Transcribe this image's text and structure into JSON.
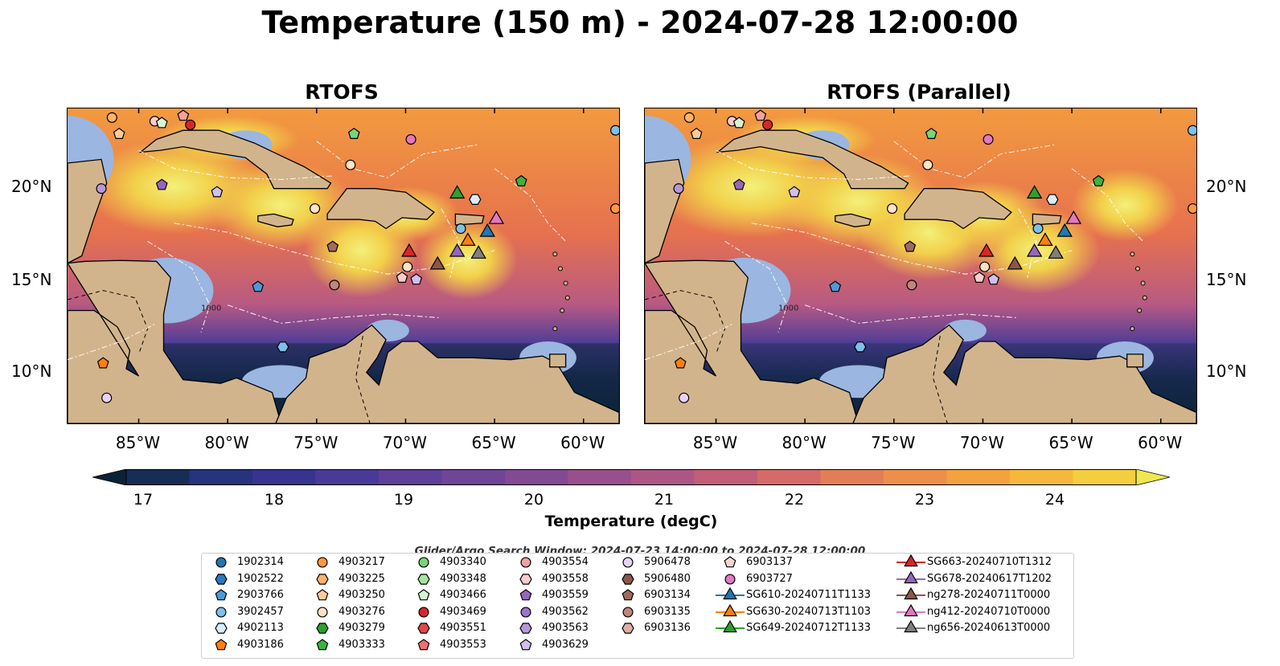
{
  "title": "Temperature (150 m) - 2024-07-28 12:00:00",
  "panels": [
    {
      "title": "RTOFS"
    },
    {
      "title": "RTOFS (Parallel)"
    }
  ],
  "axes": {
    "lat_ticks": [
      "20°N",
      "15°N",
      "10°N"
    ],
    "lon_ticks": [
      "85°W",
      "80°W",
      "75°W",
      "70°W",
      "65°W",
      "60°W"
    ],
    "contour_label": "1000"
  },
  "colorbar": {
    "label": "Temperature (degC)",
    "ticks": [
      "17",
      "18",
      "19",
      "20",
      "21",
      "22",
      "23",
      "24"
    ],
    "colors": [
      "#0b2236",
      "#182d55",
      "#27337c",
      "#37348f",
      "#4a3a98",
      "#5e3f99",
      "#704497",
      "#834a94",
      "#98508d",
      "#ad5685",
      "#c25e78",
      "#d46b69",
      "#e27e57",
      "#ec8f4a",
      "#f3a23d",
      "#f6b83a",
      "#f4ce3e",
      "#eee74f"
    ]
  },
  "search_window": "Glider/Argo Search Window: 2024-07-23 14:00:00 to 2024-07-28 12:00:00",
  "legend": {
    "columns": [
      [
        {
          "label": "1902314",
          "marker": "circle",
          "color": "#1f77b4"
        },
        {
          "label": "1902522",
          "marker": "hexagon",
          "color": "#2a78c0"
        },
        {
          "label": "2903766",
          "marker": "pentagon",
          "color": "#4c9ad8"
        },
        {
          "label": "3902457",
          "marker": "circle",
          "color": "#7ec0ea"
        },
        {
          "label": "4902113",
          "marker": "hexagon",
          "color": "#d9ecfb"
        },
        {
          "label": "4903186",
          "marker": "pentagon",
          "color": "#ff7f0e"
        }
      ],
      [
        {
          "label": "4903217",
          "marker": "circle",
          "color": "#ff9a3c"
        },
        {
          "label": "4903225",
          "marker": "hexagon",
          "color": "#ffb26b"
        },
        {
          "label": "4903250",
          "marker": "pentagon",
          "color": "#ffcc99"
        },
        {
          "label": "4903276",
          "marker": "circle",
          "color": "#ffe3c6"
        },
        {
          "label": "4903279",
          "marker": "hexagon",
          "color": "#2ca02c"
        },
        {
          "label": "4903333",
          "marker": "pentagon",
          "color": "#3cb33c"
        }
      ],
      [
        {
          "label": "4903340",
          "marker": "circle",
          "color": "#7ad37a"
        },
        {
          "label": "4903348",
          "marker": "hexagon",
          "color": "#a8e3a0"
        },
        {
          "label": "4903466",
          "marker": "pentagon",
          "color": "#d8f5d0"
        },
        {
          "label": "4903469",
          "marker": "circle",
          "color": "#d62728"
        },
        {
          "label": "4903551",
          "marker": "hexagon",
          "color": "#e04848"
        },
        {
          "label": "4903553",
          "marker": "pentagon",
          "color": "#ee7070"
        }
      ],
      [
        {
          "label": "4903554",
          "marker": "circle",
          "color": "#f4a0a0"
        },
        {
          "label": "4903558",
          "marker": "hexagon",
          "color": "#fbcccc"
        },
        {
          "label": "4903559",
          "marker": "pentagon",
          "color": "#9467bd"
        },
        {
          "label": "4903562",
          "marker": "circle",
          "color": "#9e74c6"
        },
        {
          "label": "4903563",
          "marker": "hexagon",
          "color": "#b597db"
        },
        {
          "label": "4903629",
          "marker": "pentagon",
          "color": "#d2bff0"
        }
      ],
      [
        {
          "label": "5906478",
          "marker": "circle",
          "color": "#e8d3f8"
        },
        {
          "label": "5906480",
          "marker": "hexagon",
          "color": "#8c564b"
        },
        {
          "label": "6903134",
          "marker": "pentagon",
          "color": "#a06a5d"
        },
        {
          "label": "6903135",
          "marker": "circle",
          "color": "#c0867a"
        },
        {
          "label": "6903136",
          "marker": "hexagon",
          "color": "#ddb0a4"
        }
      ],
      [
        {
          "label": "6903137",
          "marker": "pentagon",
          "color": "#f6d5cc"
        },
        {
          "label": "6903727",
          "marker": "circle",
          "color": "#e377c2"
        },
        {
          "label": "SG610-20240711T1133",
          "marker": "triangle",
          "color": "#1f77b4"
        },
        {
          "label": "SG630-20240713T1103",
          "marker": "triangle",
          "color": "#ff7f0e"
        },
        {
          "label": "SG649-20240712T1133",
          "marker": "triangle",
          "color": "#2ca02c"
        }
      ],
      [
        {
          "label": "SG663-20240710T1312",
          "marker": "triangle",
          "color": "#d62728"
        },
        {
          "label": "SG678-20240617T1202",
          "marker": "triangle",
          "color": "#9467bd"
        },
        {
          "label": "ng278-20240711T0000",
          "marker": "triangle",
          "color": "#8c564b"
        },
        {
          "label": "ng412-20240710T0000",
          "marker": "triangle",
          "color": "#e377c2"
        },
        {
          "label": "ng656-20240613T0000",
          "marker": "triangle",
          "color": "#7f7f7f"
        }
      ]
    ]
  },
  "map_markers": [
    {
      "lon": -86.5,
      "lat": 23.8,
      "marker": "circle",
      "color": "#ffb26b"
    },
    {
      "lon": -86.1,
      "lat": 22.9,
      "marker": "pentagon",
      "color": "#ffcc99"
    },
    {
      "lon": -84.1,
      "lat": 23.6,
      "marker": "circle",
      "color": "#fbcccc"
    },
    {
      "lon": -83.7,
      "lat": 23.5,
      "marker": "pentagon",
      "color": "#d8f5d0"
    },
    {
      "lon": -82.5,
      "lat": 23.9,
      "marker": "pentagon",
      "color": "#f4a0a0"
    },
    {
      "lon": -82.1,
      "lat": 23.4,
      "marker": "circle",
      "color": "#d62728"
    },
    {
      "lon": -72.9,
      "lat": 22.9,
      "marker": "pentagon",
      "color": "#7ad37a"
    },
    {
      "lon": -69.7,
      "lat": 22.6,
      "marker": "circle",
      "color": "#e377c2"
    },
    {
      "lon": -73.1,
      "lat": 21.2,
      "marker": "circle",
      "color": "#ffe3c6"
    },
    {
      "lon": -87.1,
      "lat": 19.9,
      "marker": "circle",
      "color": "#b597db"
    },
    {
      "lon": -83.7,
      "lat": 20.1,
      "marker": "pentagon",
      "color": "#9467bd"
    },
    {
      "lon": -80.6,
      "lat": 19.7,
      "marker": "pentagon",
      "color": "#d2bff0"
    },
    {
      "lon": -75.1,
      "lat": 18.8,
      "marker": "circle",
      "color": "#ffe3c6"
    },
    {
      "lon": -74.1,
      "lat": 16.7,
      "marker": "pentagon",
      "color": "#a06a5d"
    },
    {
      "lon": -74.0,
      "lat": 14.6,
      "marker": "circle",
      "color": "#c0867a"
    },
    {
      "lon": -78.3,
      "lat": 14.5,
      "marker": "pentagon",
      "color": "#4c9ad8"
    },
    {
      "lon": -69.9,
      "lat": 15.6,
      "marker": "circle",
      "color": "#ffe3c6"
    },
    {
      "lon": -70.2,
      "lat": 15.0,
      "marker": "pentagon",
      "color": "#fbcccc"
    },
    {
      "lon": -69.4,
      "lat": 14.9,
      "marker": "pentagon",
      "color": "#d2bff0"
    },
    {
      "lon": -76.9,
      "lat": 11.2,
      "marker": "hexagon",
      "color": "#7ec0ea"
    },
    {
      "lon": -87.0,
      "lat": 10.3,
      "marker": "pentagon",
      "color": "#ff7f0e"
    },
    {
      "lon": -86.8,
      "lat": 8.4,
      "marker": "circle",
      "color": "#e8d3f8"
    },
    {
      "lon": -66.1,
      "lat": 19.3,
      "marker": "hexagon",
      "color": "#d9ecfb"
    },
    {
      "lon": -66.9,
      "lat": 17.7,
      "marker": "circle",
      "color": "#7ec0ea"
    },
    {
      "lon": -63.5,
      "lat": 20.3,
      "marker": "pentagon",
      "color": "#3cb33c"
    },
    {
      "lon": -58.2,
      "lat": 23.1,
      "marker": "circle",
      "color": "#7ec0ea"
    },
    {
      "lon": -58.2,
      "lat": 18.8,
      "marker": "circle",
      "color": "#ff9a3c"
    },
    {
      "lon": -67.1,
      "lat": 19.6,
      "marker": "triangle",
      "color": "#2ca02c"
    },
    {
      "lon": -69.8,
      "lat": 16.4,
      "marker": "triangle",
      "color": "#d62728"
    },
    {
      "lon": -68.2,
      "lat": 15.7,
      "marker": "triangle",
      "color": "#8c564b"
    },
    {
      "lon": -67.1,
      "lat": 16.4,
      "marker": "triangle",
      "color": "#9467bd"
    },
    {
      "lon": -66.5,
      "lat": 17.0,
      "marker": "triangle",
      "color": "#ff7f0e"
    },
    {
      "lon": -65.9,
      "lat": 16.3,
      "marker": "triangle",
      "color": "#7f7f7f"
    },
    {
      "lon": -65.4,
      "lat": 17.5,
      "marker": "triangle",
      "color": "#1f77b4"
    },
    {
      "lon": -64.9,
      "lat": 18.2,
      "marker": "triangle",
      "color": "#e377c2"
    }
  ]
}
